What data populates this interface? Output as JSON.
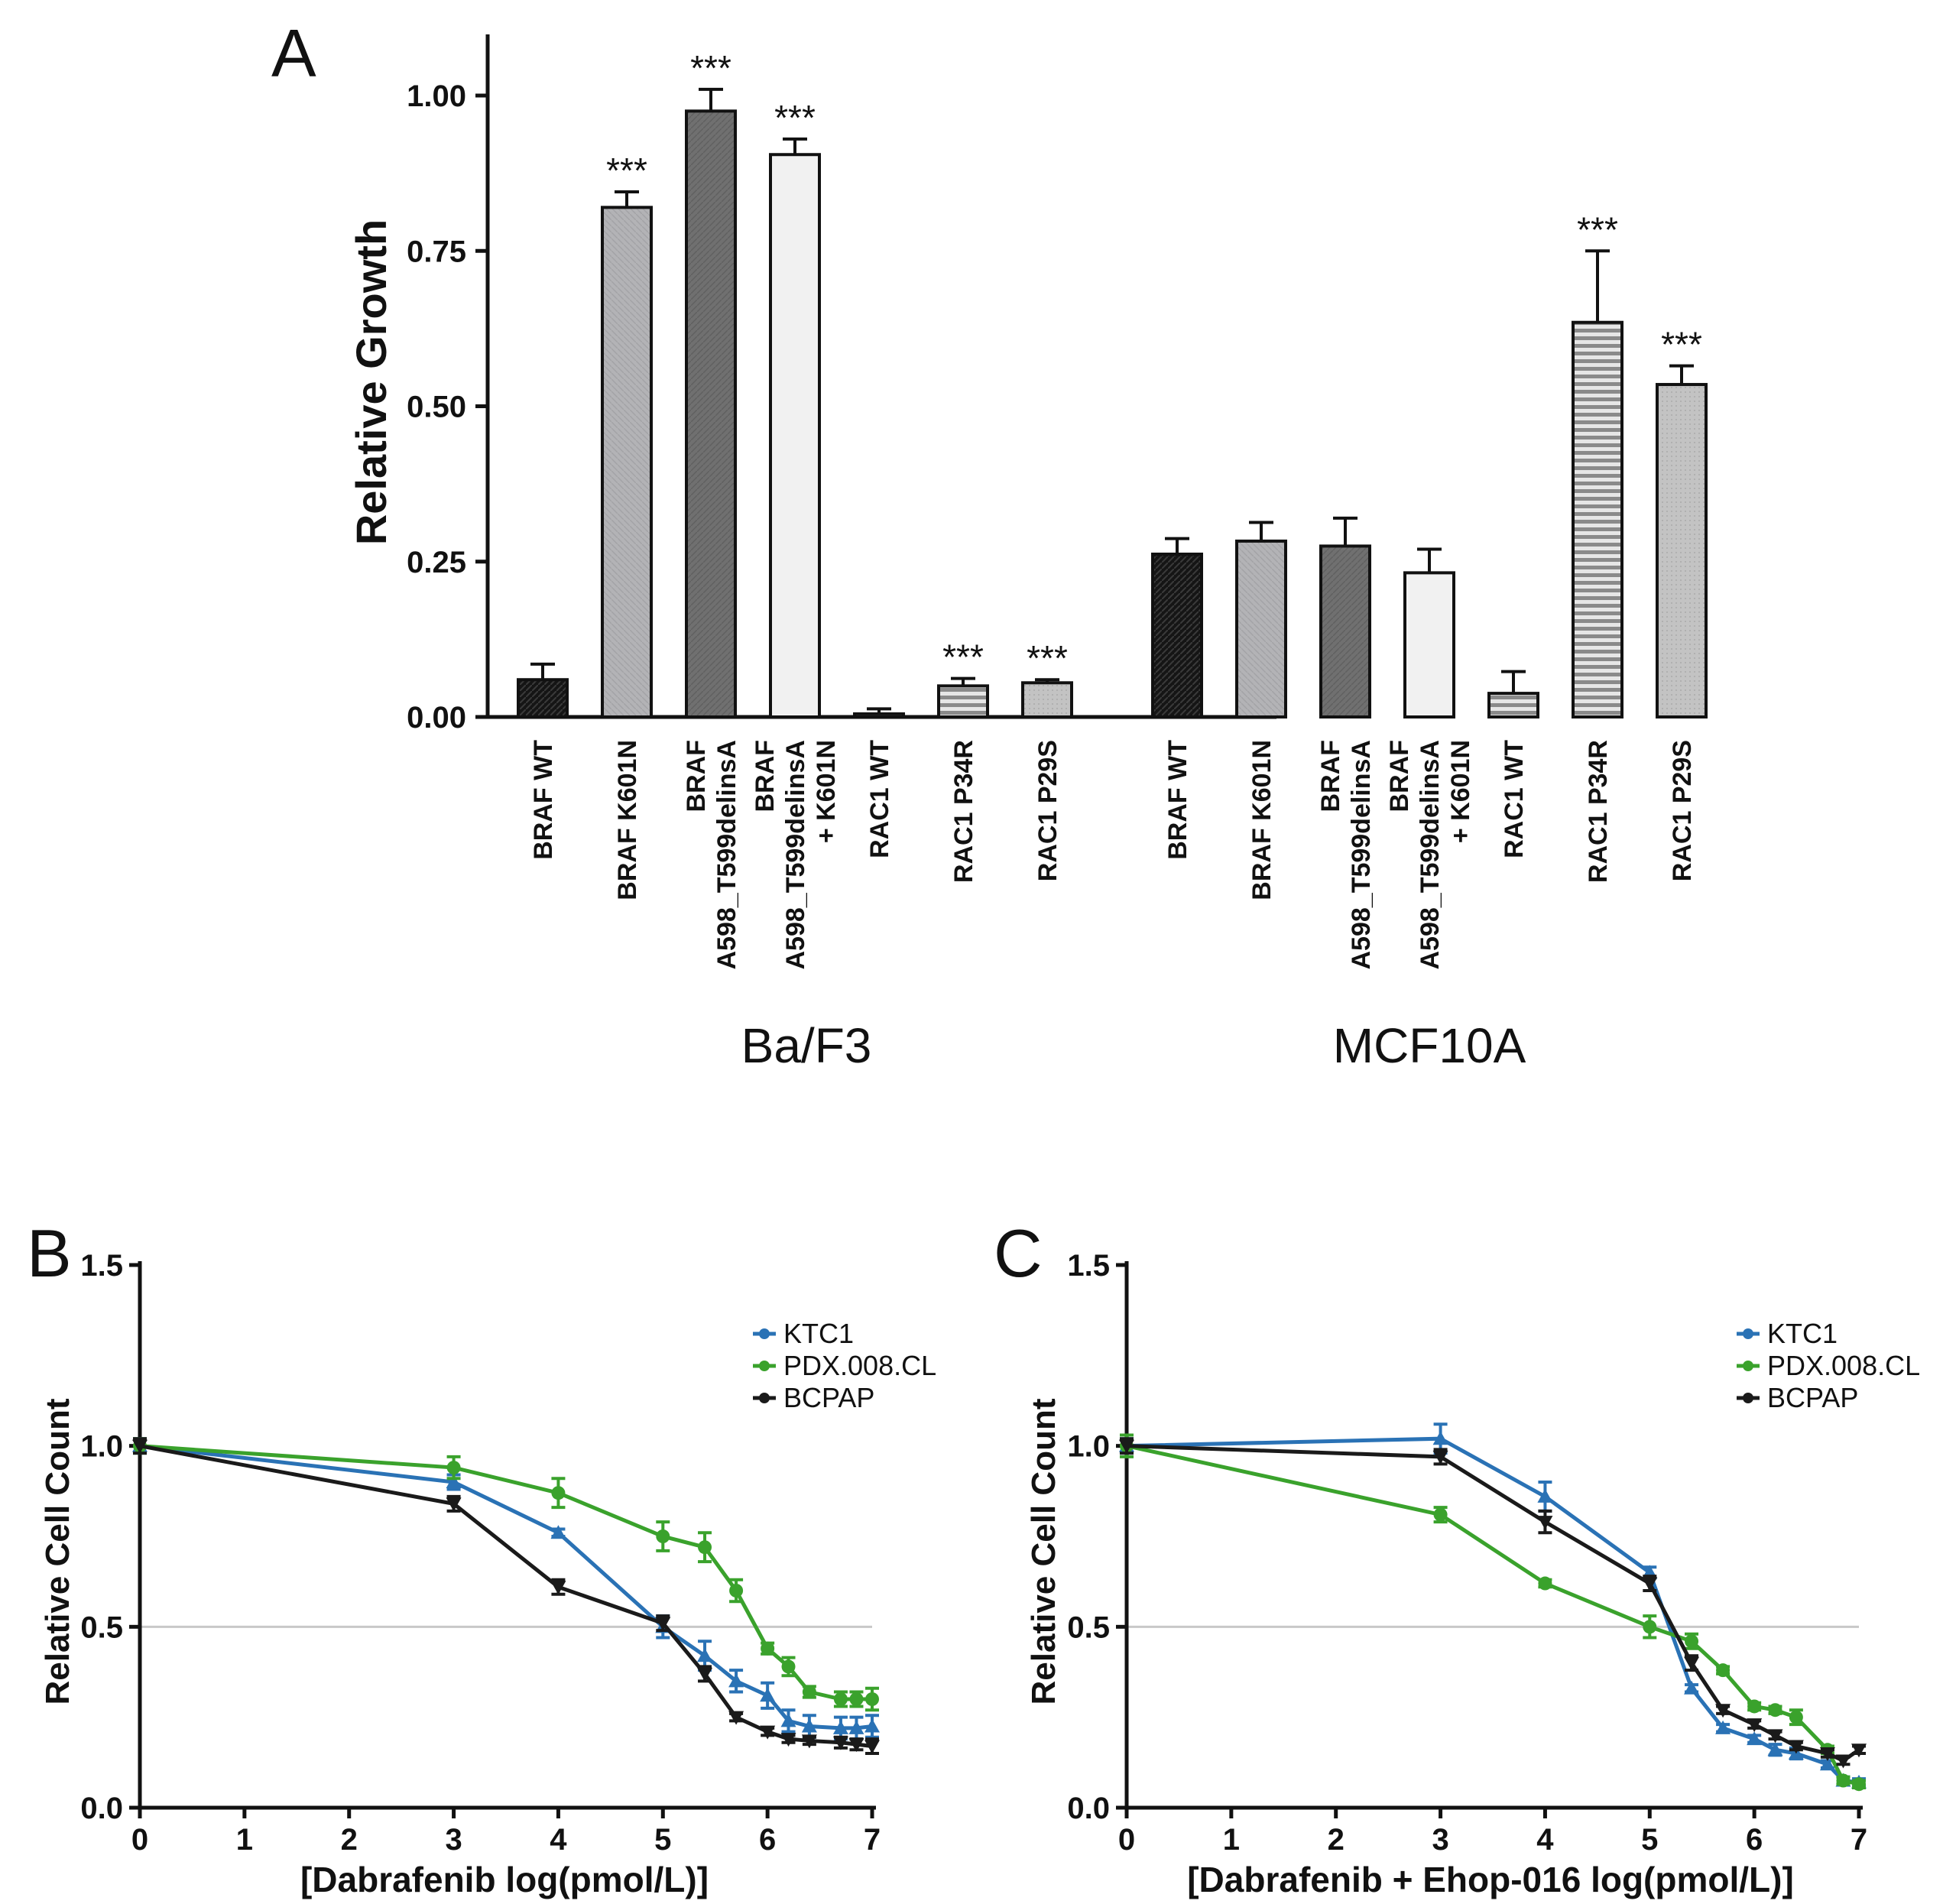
{
  "colors": {
    "KTC1": "#2a72b5",
    "PDX.008.CL": "#3aa22c",
    "BCPAP": "#1a1a1a",
    "refline": "#c8c8c8"
  },
  "chart_data": [
    {
      "panel": "A",
      "type": "bar",
      "ylabel": "Relative Growth",
      "ylim": [
        0,
        1.1
      ],
      "yticks": [
        "0.00",
        "0.25",
        "0.50",
        "0.75",
        "1.00"
      ],
      "groups": [
        {
          "name": "Ba/F3",
          "bars": [
            {
              "label": [
                "BRAF WT"
              ],
              "value": 0.06,
              "error": 0.025,
              "sig": "",
              "pattern": "dark"
            },
            {
              "label": [
                "BRAF K601N"
              ],
              "value": 0.82,
              "error": 0.025,
              "sig": "***",
              "pattern": "lightgray"
            },
            {
              "label": [
                "BRAF",
                "A598_T599delinsA"
              ],
              "value": 0.975,
              "error": 0.035,
              "sig": "***",
              "pattern": "midgray"
            },
            {
              "label": [
                "BRAF",
                "A598_T599delinsA",
                "+ K601N"
              ],
              "value": 0.905,
              "error": 0.025,
              "sig": "***",
              "pattern": "white"
            },
            {
              "label": [
                "RAC1 WT"
              ],
              "value": 0.005,
              "error": 0.008,
              "sig": "",
              "pattern": "stripe"
            },
            {
              "label": [
                "RAC1 P34R"
              ],
              "value": 0.05,
              "error": 0.012,
              "sig": "***",
              "pattern": "stripe"
            },
            {
              "label": [
                "RAC1 P29S"
              ],
              "value": 0.055,
              "error": 0.005,
              "sig": "***",
              "pattern": "dots"
            }
          ]
        },
        {
          "name": "MCF10A",
          "bars": [
            {
              "label": [
                "BRAF WT"
              ],
              "value": 0.262,
              "error": 0.025,
              "sig": "",
              "pattern": "dark"
            },
            {
              "label": [
                "BRAF K601N"
              ],
              "value": 0.283,
              "error": 0.03,
              "sig": "",
              "pattern": "lightgray"
            },
            {
              "label": [
                "BRAF",
                "A598_T599delinsA"
              ],
              "value": 0.275,
              "error": 0.045,
              "sig": "",
              "pattern": "midgray"
            },
            {
              "label": [
                "BRAF",
                "A598_T599delinsA",
                "+ K601N"
              ],
              "value": 0.232,
              "error": 0.038,
              "sig": "",
              "pattern": "white"
            },
            {
              "label": [
                "RAC1 WT"
              ],
              "value": 0.038,
              "error": 0.035,
              "sig": "",
              "pattern": "stripe"
            },
            {
              "label": [
                "RAC1 P34R"
              ],
              "value": 0.635,
              "error": 0.115,
              "sig": "***",
              "pattern": "stripe"
            },
            {
              "label": [
                "RAC1 P29S"
              ],
              "value": 0.535,
              "error": 0.03,
              "sig": "***",
              "pattern": "dots"
            }
          ]
        }
      ]
    },
    {
      "panel": "B",
      "type": "line",
      "xlabel": "[Dabrafenib log(pmol/L)]",
      "ylabel": "Relative Cell Count",
      "xlim": [
        0,
        7
      ],
      "ylim": [
        0,
        1.5
      ],
      "xticks": [
        "0",
        "1",
        "2",
        "3",
        "4",
        "5",
        "6",
        "7"
      ],
      "yticks": [
        "0.0",
        "0.5",
        "1.0",
        "1.5"
      ],
      "refline": 0.5,
      "series": [
        {
          "name": "KTC1",
          "x": [
            0,
            3,
            4,
            5,
            5.4,
            5.7,
            6,
            6.2,
            6.4,
            6.7,
            6.85,
            7
          ],
          "y": [
            1.0,
            0.9,
            0.76,
            0.5,
            0.42,
            0.35,
            0.31,
            0.24,
            0.225,
            0.22,
            0.22,
            0.225
          ],
          "err": [
            0.02,
            0.02,
            0.01,
            0.03,
            0.04,
            0.03,
            0.035,
            0.03,
            0.03,
            0.03,
            0.03,
            0.03
          ]
        },
        {
          "name": "PDX.008.CL",
          "x": [
            0,
            3,
            4,
            5,
            5.4,
            5.7,
            6,
            6.2,
            6.4,
            6.7,
            6.85,
            7
          ],
          "y": [
            1.0,
            0.94,
            0.87,
            0.75,
            0.72,
            0.6,
            0.44,
            0.39,
            0.32,
            0.3,
            0.3,
            0.3
          ],
          "err": [
            0.02,
            0.03,
            0.04,
            0.04,
            0.04,
            0.03,
            0.015,
            0.025,
            0.015,
            0.02,
            0.02,
            0.03
          ]
        },
        {
          "name": "BCPAP",
          "x": [
            0,
            3,
            4,
            5,
            5.4,
            5.7,
            6,
            6.2,
            6.4,
            6.7,
            6.85,
            7
          ],
          "y": [
            1.0,
            0.84,
            0.61,
            0.51,
            0.37,
            0.25,
            0.21,
            0.19,
            0.185,
            0.18,
            0.175,
            0.17
          ],
          "err": [
            0.02,
            0.02,
            0.02,
            0.02,
            0.02,
            0.01,
            0.01,
            0.01,
            0.01,
            0.015,
            0.015,
            0.02
          ]
        }
      ],
      "legend": [
        "KTC1",
        "PDX.008.CL",
        "BCPAP"
      ]
    },
    {
      "panel": "C",
      "type": "line",
      "xlabel": "[Dabrafenib + Ehop-016 log(pmol/L)]",
      "ylabel": "Relative Cell Count",
      "xlim": [
        0,
        7
      ],
      "ylim": [
        0,
        1.5
      ],
      "xticks": [
        "0",
        "1",
        "2",
        "3",
        "4",
        "5",
        "6",
        "7"
      ],
      "yticks": [
        "0.0",
        "0.5",
        "1.0",
        "1.5"
      ],
      "refline": 0.5,
      "series": [
        {
          "name": "KTC1",
          "x": [
            0,
            3,
            4,
            5,
            5.4,
            5.7,
            6,
            6.2,
            6.4,
            6.7,
            6.85,
            7
          ],
          "y": [
            1.0,
            1.02,
            0.86,
            0.65,
            0.33,
            0.22,
            0.19,
            0.16,
            0.15,
            0.12,
            0.075,
            0.07
          ],
          "err": [
            0.02,
            0.04,
            0.04,
            0.015,
            0.01,
            0.01,
            0.01,
            0.015,
            0.015,
            0.01,
            0.01,
            0.01
          ]
        },
        {
          "name": "PDX.008.CL",
          "x": [
            0,
            3,
            4,
            5,
            5.4,
            5.7,
            6,
            6.2,
            6.4,
            6.7,
            6.85,
            7
          ],
          "y": [
            1.0,
            0.81,
            0.62,
            0.5,
            0.46,
            0.38,
            0.28,
            0.27,
            0.25,
            0.16,
            0.075,
            0.065
          ],
          "err": [
            0.03,
            0.02,
            0.01,
            0.03,
            0.02,
            0.01,
            0.01,
            0.01,
            0.02,
            0.01,
            0.01,
            0.01
          ]
        },
        {
          "name": "BCPAP",
          "x": [
            0,
            3,
            4,
            5,
            5.4,
            5.7,
            6,
            6.2,
            6.4,
            6.7,
            6.85,
            7
          ],
          "y": [
            1.0,
            0.97,
            0.79,
            0.62,
            0.4,
            0.27,
            0.23,
            0.2,
            0.17,
            0.15,
            0.13,
            0.16
          ],
          "err": [
            0.02,
            0.02,
            0.03,
            0.02,
            0.02,
            0.01,
            0.01,
            0.01,
            0.01,
            0.01,
            0.01,
            0.01
          ]
        }
      ],
      "legend": [
        "KTC1",
        "PDX.008.CL",
        "BCPAP"
      ]
    }
  ]
}
